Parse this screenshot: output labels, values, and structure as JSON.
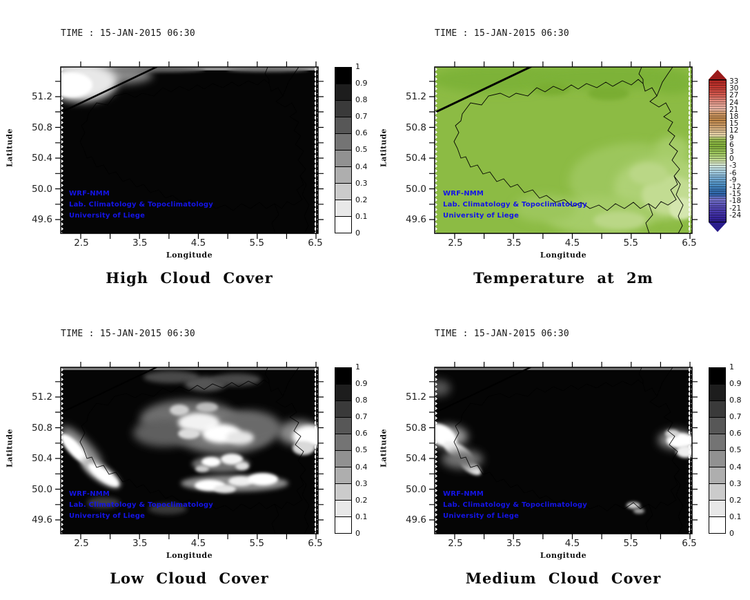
{
  "page_background": "#ffffff",
  "panels": [
    {
      "time_label": "TIME : 15-JAN-2015 06:30",
      "title": "High Cloud Cover",
      "xlabel": "Longitude",
      "ylabel": "Latitude",
      "x_tick_labels": [
        "2.5",
        "3.5",
        "4.5",
        "5.5",
        "6.5"
      ],
      "y_tick_labels": [
        "51.2",
        "50.8",
        "50.4",
        "50.0",
        "49.6"
      ],
      "credits": [
        "WRF-NMM",
        "Lab. Climatology & Topoclimatology",
        "University of Liege"
      ],
      "colorbar_labels": [
        "1",
        "0.9",
        "0.8",
        "0.7",
        "0.6",
        "0.5",
        "0.4",
        "0.3",
        "0.2",
        "0.1",
        "0"
      ]
    },
    {
      "time_label": "TIME : 15-JAN-2015 06:30",
      "title": "Temperature at 2m",
      "xlabel": "Longitude",
      "ylabel": "Latitude",
      "x_tick_labels": [
        "2.5",
        "3.5",
        "4.5",
        "5.5",
        "6.5"
      ],
      "y_tick_labels": [
        "51.2",
        "50.8",
        "50.4",
        "50.0",
        "49.6"
      ],
      "credits": [
        "WRF-NMM",
        "Lab. Climatology & Topoclimatology",
        "University of Liege"
      ],
      "colorbar_labels": [
        "33",
        "30",
        "27",
        "24",
        "21",
        "18",
        "15",
        "12",
        "9",
        "6",
        "3",
        "0",
        "-3",
        "-6",
        "-9",
        "-12",
        "-15",
        "-18",
        "-21",
        "-24"
      ]
    },
    {
      "time_label": "TIME : 15-JAN-2015 06:30",
      "title": "Low Cloud Cover",
      "xlabel": "Longitude",
      "ylabel": "Latitude",
      "x_tick_labels": [
        "2.5",
        "3.5",
        "4.5",
        "5.5",
        "6.5"
      ],
      "y_tick_labels": [
        "51.2",
        "50.8",
        "50.4",
        "50.0",
        "49.6"
      ],
      "credits": [
        "WRF-NMM",
        "Lab. Climatology & Topoclimatology",
        "University of Liege"
      ],
      "colorbar_labels": [
        "1",
        "0.9",
        "0.8",
        "0.7",
        "0.6",
        "0.5",
        "0.4",
        "0.3",
        "0.2",
        "0.1",
        "0"
      ]
    },
    {
      "time_label": "TIME : 15-JAN-2015 06:30",
      "title": "Medium Cloud Cover",
      "xlabel": "Longitude",
      "ylabel": "Latitude",
      "x_tick_labels": [
        "2.5",
        "3.5",
        "4.5",
        "5.5",
        "6.5"
      ],
      "y_tick_labels": [
        "51.2",
        "50.8",
        "50.4",
        "50.0",
        "49.6"
      ],
      "credits": [
        "WRF-NMM",
        "Lab. Climatology & Topoclimatology",
        "University of Liege"
      ],
      "colorbar_labels": [
        "1",
        "0.9",
        "0.8",
        "0.7",
        "0.6",
        "0.5",
        "0.4",
        "0.3",
        "0.2",
        "0.1",
        "0"
      ]
    }
  ],
  "colors": {
    "credit_text": "#1414e6",
    "gray_colorbar_segments": [
      "#000000",
      "#1d1d1d",
      "#3a3a3a",
      "#575757",
      "#747474",
      "#919191",
      "#aeaeae",
      "#cbcbcb",
      "#e8e8e8",
      "#ffffff"
    ],
    "temp_arrow_top": "#9b1b1b",
    "temp_arrow_bottom": "#2a1d8c",
    "temp_map_base_green": "#8cbb44",
    "cloud_map_overcast": "#050505"
  },
  "chart_data": [
    {
      "type": "heatmap",
      "title": "High Cloud Cover",
      "time": "15-JAN-2015 06:30",
      "xlabel": "Longitude",
      "ylabel": "Latitude",
      "xlim": [
        2.16,
        6.53
      ],
      "ylim": [
        49.42,
        51.59
      ],
      "x_ticks_labeled": [
        2.5,
        3.5,
        4.5,
        5.5,
        6.5
      ],
      "x_ticks_all": [
        2.5,
        3.0,
        3.5,
        4.0,
        4.5,
        5.0,
        5.5,
        6.0,
        6.5
      ],
      "y_ticks_labeled": [
        49.6,
        50.0,
        50.4,
        50.8,
        51.2
      ],
      "y_ticks_all": [
        49.6,
        49.8,
        50.0,
        50.2,
        50.4,
        50.6,
        50.8,
        51.0,
        51.2,
        51.4
      ],
      "colorbar": {
        "range": [
          0,
          1
        ],
        "ticks": [
          0,
          0.1,
          0.2,
          0.3,
          0.4,
          0.5,
          0.6,
          0.7,
          0.8,
          0.9,
          1
        ],
        "scale": "grayscale, white=0 to black=1, 10 steps",
        "position": "right"
      },
      "annotations": [
        "WRF-NMM",
        "Lab. Climatology & Topoclimatology",
        "University of Liege"
      ],
      "field_summary": "High cloud cover = 1 (black) over virtually the whole Belgian domain; a clear patch (cover near 0, white) in the northwest corner around 2.2-3.2E / 51.2-51.6N crossed by the coastline; thin gray band (cover 0.5-0.8) along the top edge."
    },
    {
      "type": "heatmap",
      "title": "Temperature at 2m",
      "time": "15-JAN-2015 06:30",
      "xlabel": "Longitude",
      "ylabel": "Latitude",
      "xlim": [
        2.16,
        6.53
      ],
      "ylim": [
        49.42,
        51.59
      ],
      "x_ticks_labeled": [
        2.5,
        3.5,
        4.5,
        5.5,
        6.5
      ],
      "y_ticks_labeled": [
        49.6,
        50.0,
        50.4,
        50.8,
        51.2
      ],
      "colorbar": {
        "range": [
          -24,
          33
        ],
        "ticks": [
          33,
          30,
          27,
          24,
          21,
          18,
          15,
          12,
          9,
          6,
          3,
          0,
          -3,
          -6,
          -9,
          -12,
          -15,
          -18,
          -21,
          -24
        ],
        "scale": "rainbow: dark red (hot) - red - salmon - tan - green - pale green - light blue - blue - violet (cold), with over/under arrow triangles",
        "position": "right"
      },
      "annotations": [
        "WRF-NMM",
        "Lab. Climatology & Topoclimatology",
        "University of Liege"
      ],
      "field_summary": "2-m temperature roughly 4-8 C (medium green) over most of Belgium; slightly cooler 0-3 C (pale light green) over the Ardennes high ground in the southeast and along the far east; country/regional borders and the North Sea coastline drawn in black."
    },
    {
      "type": "heatmap",
      "title": "Low Cloud Cover",
      "time": "15-JAN-2015 06:30",
      "xlabel": "Longitude",
      "ylabel": "Latitude",
      "xlim": [
        2.16,
        6.53
      ],
      "ylim": [
        49.42,
        51.59
      ],
      "x_ticks_labeled": [
        2.5,
        3.5,
        4.5,
        5.5,
        6.5
      ],
      "y_ticks_labeled": [
        49.6,
        50.0,
        50.4,
        50.8,
        51.2
      ],
      "colorbar": {
        "range": [
          0,
          1
        ],
        "ticks": [
          0,
          0.1,
          0.2,
          0.3,
          0.4,
          0.5,
          0.6,
          0.7,
          0.8,
          0.9,
          1
        ],
        "scale": "grayscale, white=0 to black=1, 10 steps",
        "position": "right"
      },
      "annotations": [
        "WRF-NMM",
        "Lab. Climatology & Topoclimatology",
        "University of Liege"
      ],
      "field_summary": "Low cloud cover near 1 (black) over most of the domain with clear gaps (near 0, white): a diagonal band near 2.3-3.2E / 50.0-50.7N, a large broken cluster near 3.5-5.6E / 50.6-51.0N, small cells near 4.6-5.2E / 50.3N, an elongated band near 4.3-5.9E / 50.0-50.2N, and a patch at the east edge near 6.2-6.5E / 50.5-50.9N."
    },
    {
      "type": "heatmap",
      "title": "Medium Cloud Cover",
      "time": "15-JAN-2015 06:30",
      "xlabel": "Longitude",
      "ylabel": "Latitude",
      "xlim": [
        2.16,
        6.53
      ],
      "ylim": [
        49.42,
        51.59
      ],
      "x_ticks_labeled": [
        2.5,
        3.5,
        4.5,
        5.5,
        6.5
      ],
      "y_ticks_labeled": [
        49.6,
        50.0,
        50.4,
        50.8,
        51.2
      ],
      "colorbar": {
        "range": [
          0,
          1
        ],
        "ticks": [
          0,
          0.1,
          0.2,
          0.3,
          0.4,
          0.5,
          0.6,
          0.7,
          0.8,
          0.9,
          1
        ],
        "scale": "grayscale, white=0 to black=1, 10 steps",
        "position": "right"
      },
      "annotations": [
        "WRF-NMM",
        "Lab. Climatology & Topoclimatology",
        "University of Liege"
      ],
      "field_summary": "Medium cloud cover near 1 (black) almost everywhere; clear chevron-shaped patch (near 0) at the west edge around 2.2-2.9E / 50.1-50.8N, a clear patch at the east edge around 5.9-6.5E / 50.4-50.7N, and a small break near 5.5E / 49.8N."
    }
  ]
}
